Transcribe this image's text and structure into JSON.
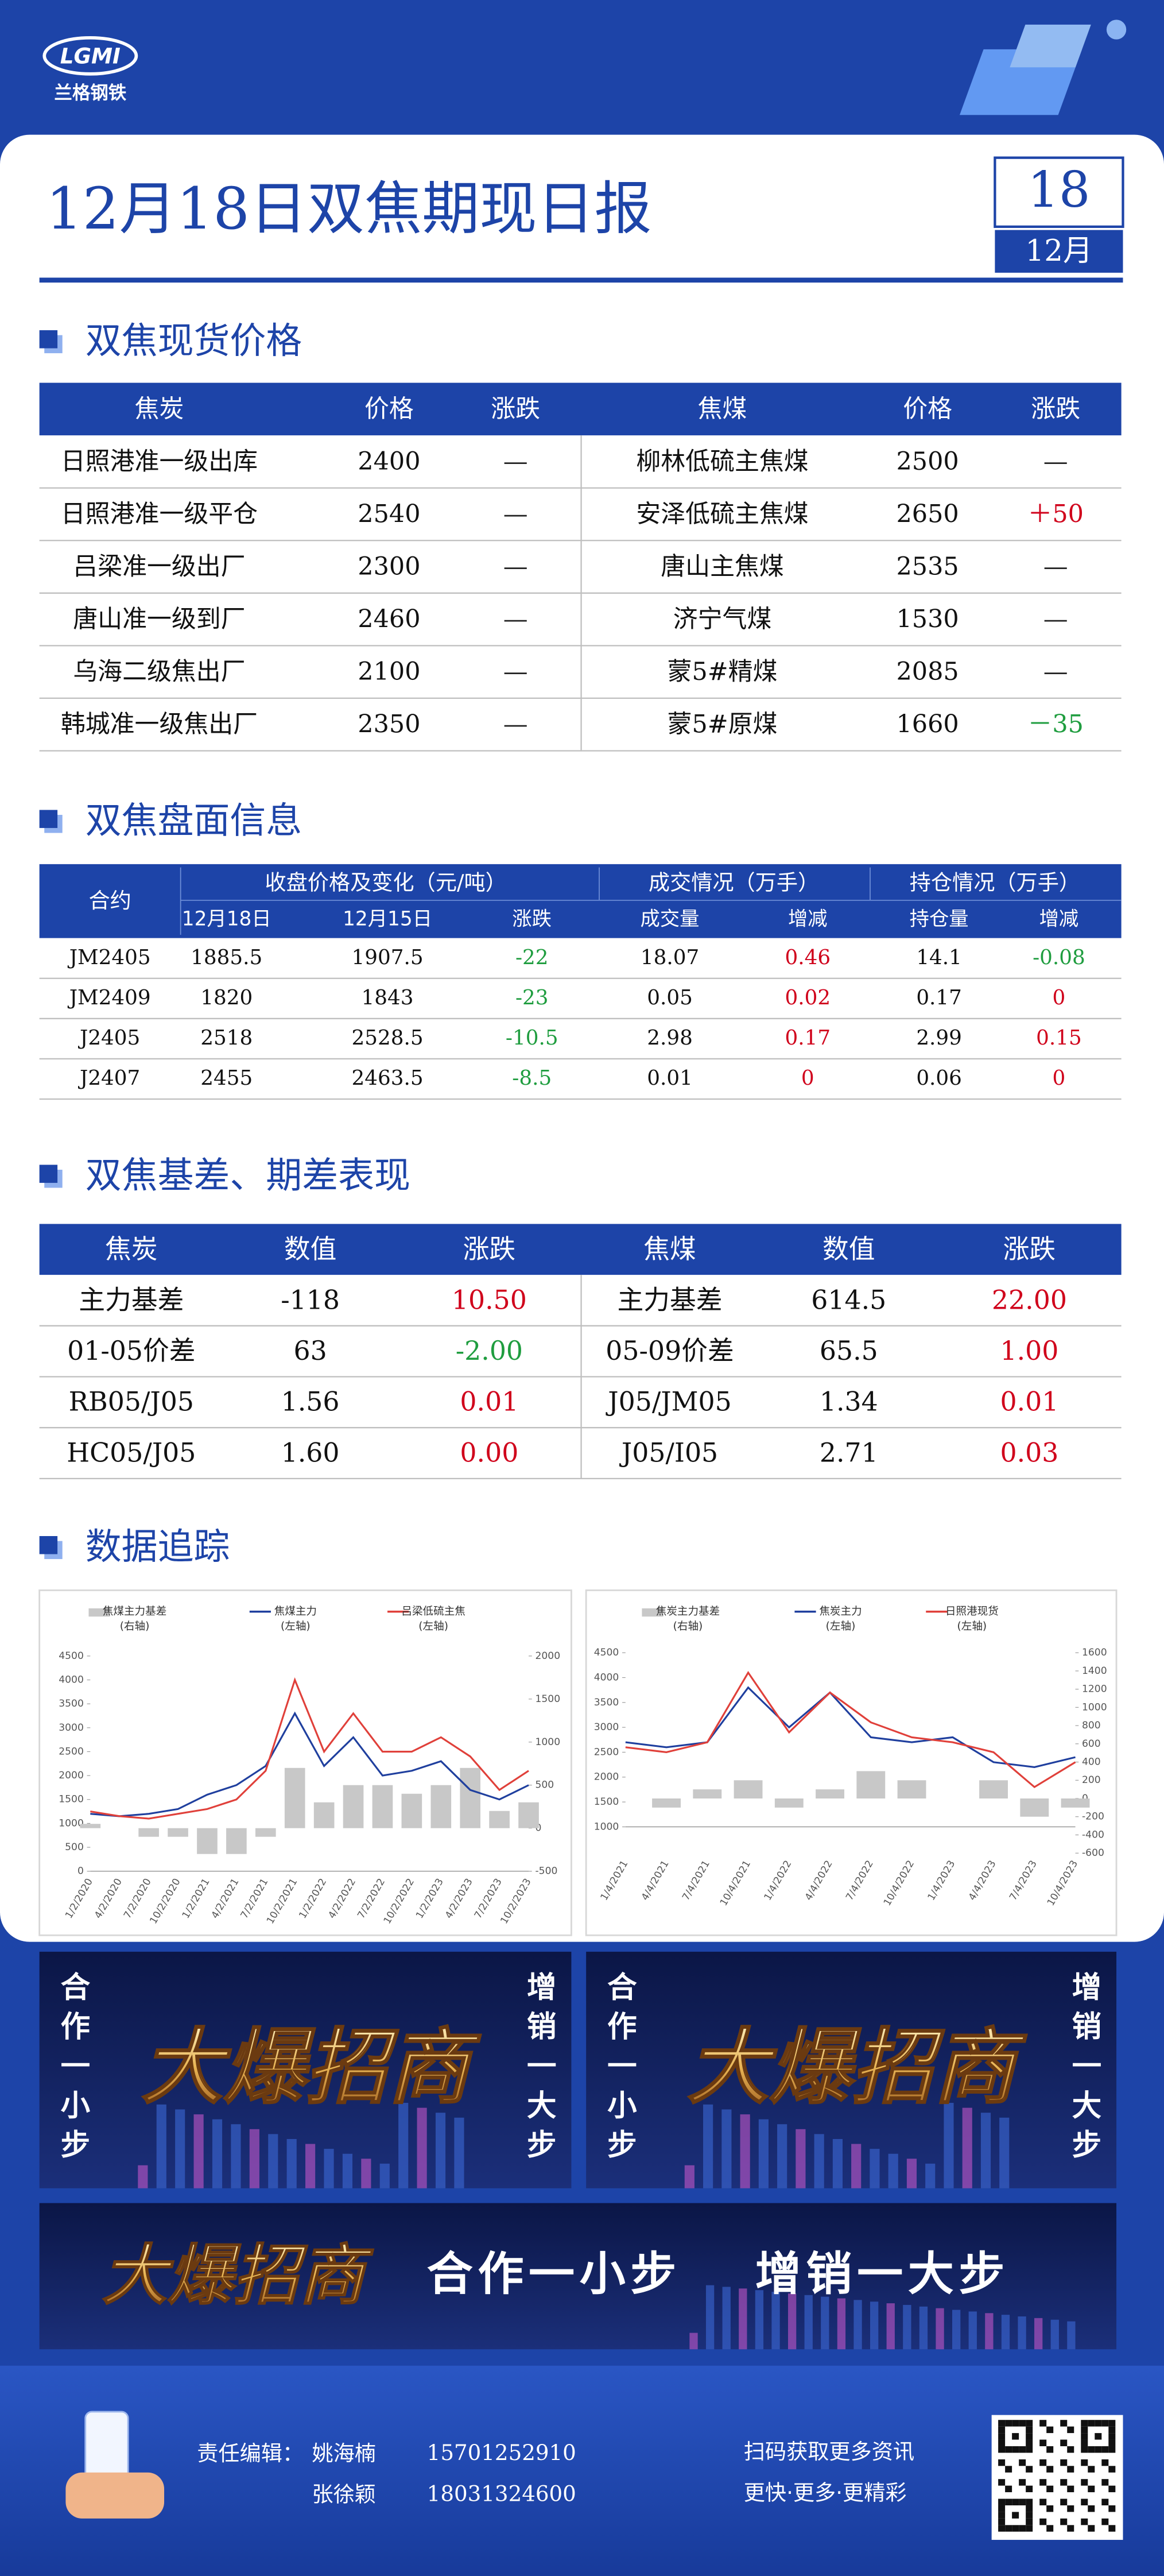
{
  "header": {
    "logo": "LGMI",
    "brand": "兰格钢铁",
    "title": "12月18日双焦期现日报",
    "day": "18",
    "month": "12月"
  },
  "spot_section": {
    "heading": "双焦现货价格",
    "columns": [
      "焦炭",
      "价格",
      "涨跌",
      "焦煤",
      "价格",
      "涨跌"
    ],
    "rows": [
      [
        "日照港准一级出库",
        "2400",
        "—",
        "柳林低硫主焦煤",
        "2500",
        "—"
      ],
      [
        "日照港准一级平仓",
        "2540",
        "—",
        "安泽低硫主焦煤",
        "2650",
        "＋50"
      ],
      [
        "吕梁准一级出厂",
        "2300",
        "—",
        "唐山主焦煤",
        "2535",
        "—"
      ],
      [
        "唐山准一级到厂",
        "2460",
        "—",
        "济宁气煤",
        "1530",
        "—"
      ],
      [
        "乌海二级焦出厂",
        "2100",
        "—",
        "蒙5#精煤",
        "2085",
        "—"
      ],
      [
        "韩城准一级焦出厂",
        "2350",
        "—",
        "蒙5#原煤",
        "1660",
        "－35"
      ]
    ]
  },
  "futures_section": {
    "heading": "双焦盘面信息",
    "group_headers": [
      "合约",
      "收盘价格及变化（元/吨）",
      "成交情况（万手）",
      "持仓情况（万手）"
    ],
    "columns": [
      "12月18日",
      "12月15日",
      "涨跌",
      "成交量",
      "增减",
      "持仓量",
      "增减"
    ],
    "rows": [
      [
        "JM2405",
        "1885.5",
        "1907.5",
        "-22",
        "18.07",
        "0.46",
        "14.1",
        "-0.08"
      ],
      [
        "JM2409",
        "1820",
        "1843",
        "-23",
        "0.05",
        "0.02",
        "0.17",
        "0"
      ],
      [
        "J2405",
        "2518",
        "2528.5",
        "-10.5",
        "2.98",
        "0.17",
        "2.99",
        "0.15"
      ],
      [
        "J2407",
        "2455",
        "2463.5",
        "-8.5",
        "0.01",
        "0",
        "0.06",
        "0"
      ]
    ]
  },
  "basis_section": {
    "heading": "双焦基差、期差表现",
    "columns": [
      "焦炭",
      "数值",
      "涨跌",
      "焦煤",
      "数值",
      "涨跌"
    ],
    "rows": [
      [
        "主力基差",
        "-118",
        "10.50",
        "主力基差",
        "614.5",
        "22.00"
      ],
      [
        "01-05价差",
        "63",
        "-2.00",
        "05-09价差",
        "65.5",
        "1.00"
      ],
      [
        "RB05/J05",
        "1.56",
        "0.01",
        "J05/JM05",
        "1.34",
        "0.01"
      ],
      [
        "HC05/J05",
        "1.60",
        "0.00",
        "J05/I05",
        "2.71",
        "0.03"
      ]
    ]
  },
  "tracking_section": {
    "heading": "数据追踪"
  },
  "chart_data": [
    {
      "type": "line",
      "x": [
        "1/2/2020",
        "4/2/2020",
        "7/2/2020",
        "10/2/2020",
        "1/2/2021",
        "4/2/2021",
        "7/2/2021",
        "10/2/2021",
        "1/2/2022",
        "4/2/2022",
        "7/2/2022",
        "10/2/2022",
        "1/2/2023",
        "4/2/2023",
        "7/2/2023",
        "10/2/2023"
      ],
      "series": [
        {
          "name": "焦煤主力基差",
          "axis_label": "(右轴)",
          "type": "bar",
          "axis": "y2",
          "color": "#c8c8c8",
          "values": [
            50,
            0,
            -100,
            -100,
            -300,
            -300,
            -100,
            700,
            300,
            500,
            500,
            400,
            500,
            700,
            200,
            300
          ]
        },
        {
          "name": "焦煤主力",
          "axis_label": "(左轴)",
          "color": "#1f3f9e",
          "values": [
            1200,
            1150,
            1200,
            1300,
            1600,
            1800,
            2200,
            3300,
            2200,
            2800,
            2000,
            2100,
            2300,
            1700,
            1500,
            1800
          ]
        },
        {
          "name": "吕梁低硫主焦",
          "axis_label": "(左轴)",
          "color": "#e0403a",
          "values": [
            1250,
            1150,
            1100,
            1200,
            1300,
            1500,
            2100,
            4000,
            2500,
            3300,
            2500,
            2500,
            2800,
            2400,
            1700,
            2100
          ]
        }
      ],
      "ylim": [
        0,
        4500
      ],
      "yticks": [
        0,
        500,
        1000,
        1500,
        2000,
        2500,
        3000,
        3500,
        4000,
        4500
      ],
      "y2lim": [
        -500,
        2000
      ],
      "y2ticks": [
        -500,
        0,
        500,
        1000,
        1500,
        2000
      ]
    },
    {
      "type": "line",
      "x": [
        "1/4/2021",
        "4/4/2021",
        "7/4/2021",
        "10/4/2021",
        "1/4/2022",
        "4/4/2022",
        "7/4/2022",
        "10/4/2022",
        "1/4/2023",
        "4/4/2023",
        "7/4/2023",
        "10/4/2023"
      ],
      "series": [
        {
          "name": "焦炭主力基差",
          "axis_label": "(右轴)",
          "type": "bar",
          "axis": "y2",
          "color": "#c8c8c8",
          "values": [
            0,
            -100,
            100,
            200,
            -100,
            100,
            300,
            200,
            0,
            200,
            -200,
            -100
          ]
        },
        {
          "name": "焦炭主力",
          "axis_label": "(左轴)",
          "color": "#1f3f9e",
          "values": [
            2700,
            2600,
            2700,
            3800,
            3000,
            3700,
            2800,
            2700,
            2800,
            2300,
            2200,
            2400
          ]
        },
        {
          "name": "日照港现货",
          "axis_label": "(左轴)",
          "color": "#e0403a",
          "values": [
            2600,
            2500,
            2700,
            4100,
            2900,
            3700,
            3100,
            2800,
            2700,
            2500,
            1800,
            2300
          ]
        }
      ],
      "ylim": [
        1000,
        4500
      ],
      "yticks": [
        1000,
        1500,
        2000,
        2500,
        3000,
        3500,
        4000,
        4500
      ],
      "y2lim": [
        -600,
        1600
      ],
      "y2ticks": [
        -600,
        -400,
        -200,
        0,
        200,
        400,
        600,
        800,
        1000,
        1200,
        1400,
        1600
      ]
    }
  ],
  "banners": {
    "brand": "大爆招商",
    "left": "合作一小步",
    "right": "增销一大步"
  },
  "footer": {
    "editor_label": "责任编辑：",
    "editors": [
      {
        "name": "姚海楠",
        "phone": "15701252910"
      },
      {
        "name": "张徐颖",
        "phone": "18031324600"
      }
    ],
    "qr_caption": "扫码获取更多资讯",
    "slogan": "更快·更多·更精彩"
  }
}
